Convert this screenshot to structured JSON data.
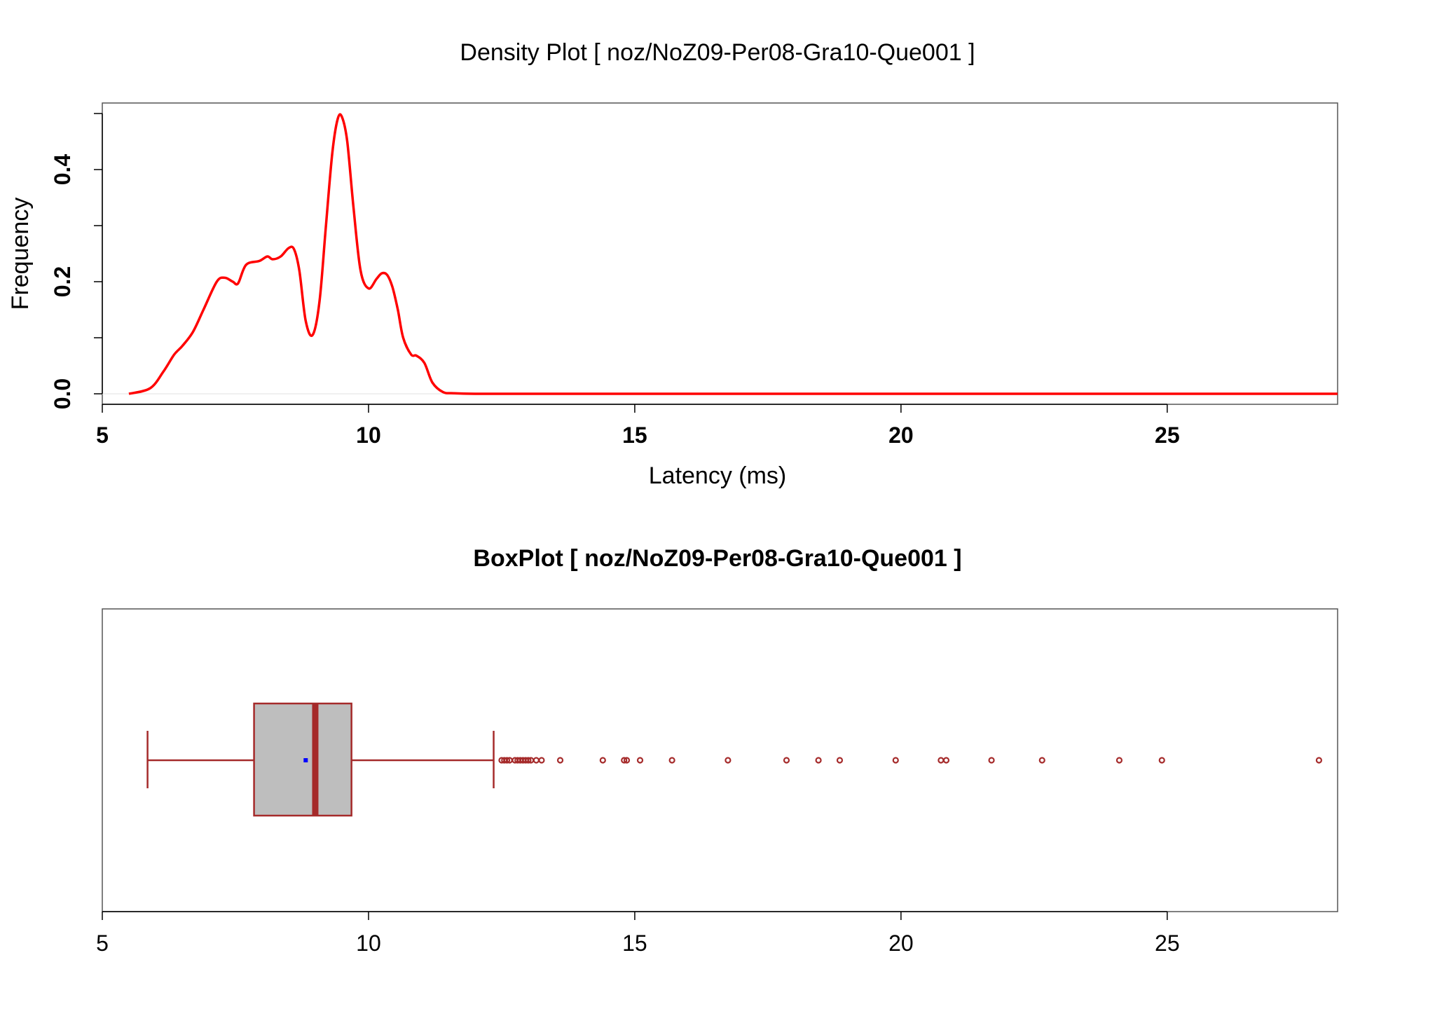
{
  "chart_data": [
    {
      "type": "line",
      "title": "Density Plot [ noz/NoZ09-Per08-Gra10-Que001 ]",
      "xlabel": "Latency (ms)",
      "ylabel": "Frequency",
      "xlim": [
        5,
        28.2
      ],
      "ylim": [
        0,
        0.51
      ],
      "x_ticks": [
        "5",
        "10",
        "15",
        "20",
        "25"
      ],
      "y_ticks": [
        "0.0",
        "0.2",
        "0.4"
      ],
      "grid": false,
      "series": [
        {
          "color": "#ff0000",
          "x": [
            5.5,
            5.9,
            6.15,
            6.35,
            6.5,
            6.7,
            6.9,
            7.15,
            7.3,
            7.45,
            7.55,
            7.7,
            7.95,
            8.1,
            8.2,
            8.35,
            8.5,
            8.6,
            8.7,
            8.82,
            8.95,
            9.08,
            9.2,
            9.32,
            9.42,
            9.5,
            9.6,
            9.72,
            9.85,
            10.0,
            10.15,
            10.25,
            10.35,
            10.45,
            10.55,
            10.65,
            10.8,
            10.9,
            11.05,
            11.2,
            11.4,
            11.6,
            12.0,
            13.0,
            15.0,
            20.0,
            25.0,
            28.2
          ],
          "y": [
            0.0,
            0.01,
            0.04,
            0.07,
            0.085,
            0.11,
            0.15,
            0.2,
            0.207,
            0.2,
            0.197,
            0.23,
            0.237,
            0.245,
            0.24,
            0.245,
            0.26,
            0.258,
            0.22,
            0.13,
            0.105,
            0.165,
            0.3,
            0.43,
            0.49,
            0.494,
            0.45,
            0.33,
            0.22,
            0.188,
            0.205,
            0.215,
            0.212,
            0.19,
            0.15,
            0.1,
            0.07,
            0.068,
            0.055,
            0.02,
            0.003,
            0.001,
            0.0,
            0.0,
            0.0,
            0.0,
            0.0,
            0.0
          ]
        }
      ]
    },
    {
      "type": "boxplot",
      "title": "BoxPlot [ noz/NoZ09-Per08-Gra10-Que001 ]",
      "xlim": [
        5,
        28.2
      ],
      "x_ticks": [
        "5",
        "10",
        "15",
        "20",
        "25"
      ],
      "stats": {
        "whisker_low": 5.85,
        "q1": 7.85,
        "median": 9.0,
        "q3": 9.68,
        "whisker_high": 12.35,
        "mean": 8.82
      },
      "colors": {
        "border": "#a52a2a",
        "fill": "#bebebe",
        "mean": "#0000ff"
      },
      "outliers": [
        12.5,
        12.55,
        12.6,
        12.65,
        12.75,
        12.8,
        12.85,
        12.9,
        12.95,
        13.0,
        13.05,
        13.15,
        13.25,
        13.6,
        14.4,
        14.8,
        14.85,
        15.1,
        15.7,
        16.75,
        17.85,
        18.45,
        18.85,
        19.9,
        20.75,
        20.85,
        21.7,
        22.65,
        24.1,
        24.9,
        27.85
      ]
    }
  ]
}
